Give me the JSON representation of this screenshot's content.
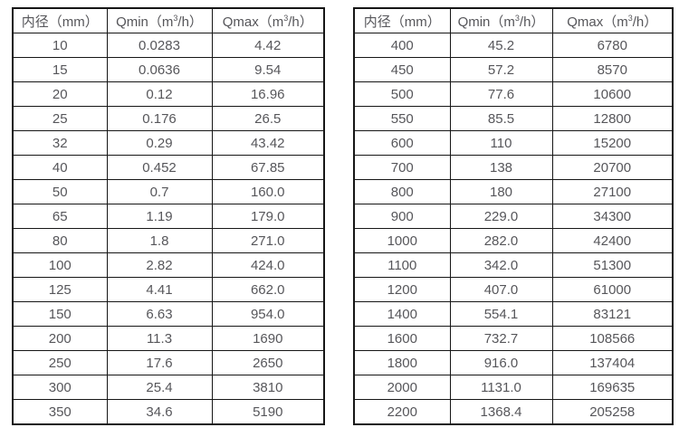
{
  "page": {
    "background": "#ffffff",
    "text_color": "#56565a",
    "border_color": "#161616"
  },
  "chart_data": [
    {
      "type": "table",
      "name": "flow-rate-table-small-diameters",
      "columns": [
        {
          "pre": "内径（mm）",
          "sup": "",
          "post": ""
        },
        {
          "pre": "Qmin（m",
          "sup": "3",
          "post": "/h）"
        },
        {
          "pre": "Qmax（m",
          "sup": "3",
          "post": "/h）"
        }
      ],
      "column_plain_labels": [
        "内径（mm）",
        "Qmin（m3/h）",
        "Qmax（m3/h）"
      ],
      "rows": [
        [
          "10",
          "0.0283",
          "4.42"
        ],
        [
          "15",
          "0.0636",
          "9.54"
        ],
        [
          "20",
          "0.12",
          "16.96"
        ],
        [
          "25",
          "0.176",
          "26.5"
        ],
        [
          "32",
          "0.29",
          "43.42"
        ],
        [
          "40",
          "0.452",
          "67.85"
        ],
        [
          "50",
          "0.7",
          "160.0"
        ],
        [
          "65",
          "1.19",
          "179.0"
        ],
        [
          "80",
          "1.8",
          "271.0"
        ],
        [
          "100",
          "2.82",
          "424.0"
        ],
        [
          "125",
          "4.41",
          "662.0"
        ],
        [
          "150",
          "6.63",
          "954.0"
        ],
        [
          "200",
          "11.3",
          "1690"
        ],
        [
          "250",
          "17.6",
          "2650"
        ],
        [
          "300",
          "25.4",
          "3810"
        ],
        [
          "350",
          "34.6",
          "5190"
        ]
      ]
    },
    {
      "type": "table",
      "name": "flow-rate-table-large-diameters",
      "columns": [
        {
          "pre": "内径（mm）",
          "sup": "",
          "post": ""
        },
        {
          "pre": "Qmin（m",
          "sup": "3",
          "post": "/h）"
        },
        {
          "pre": "Qmax（m",
          "sup": "3",
          "post": "/h）"
        }
      ],
      "column_plain_labels": [
        "内径（mm）",
        "Qmin（m3/h）",
        "Qmax（m3/h）"
      ],
      "rows": [
        [
          "400",
          "45.2",
          "6780"
        ],
        [
          "450",
          "57.2",
          "8570"
        ],
        [
          "500",
          "77.6",
          "10600"
        ],
        [
          "550",
          "85.5",
          "12800"
        ],
        [
          "600",
          "110",
          "15200"
        ],
        [
          "700",
          "138",
          "20700"
        ],
        [
          "800",
          "180",
          "27100"
        ],
        [
          "900",
          "229.0",
          "34300"
        ],
        [
          "1000",
          "282.0",
          "42400"
        ],
        [
          "1100",
          "342.0",
          "51300"
        ],
        [
          "1200",
          "407.0",
          "61000"
        ],
        [
          "1400",
          "554.1",
          "83121"
        ],
        [
          "1600",
          "732.7",
          "108566"
        ],
        [
          "1800",
          "916.0",
          "137404"
        ],
        [
          "2000",
          "1131.0",
          "169635"
        ],
        [
          "2200",
          "1368.4",
          "205258"
        ]
      ]
    }
  ]
}
